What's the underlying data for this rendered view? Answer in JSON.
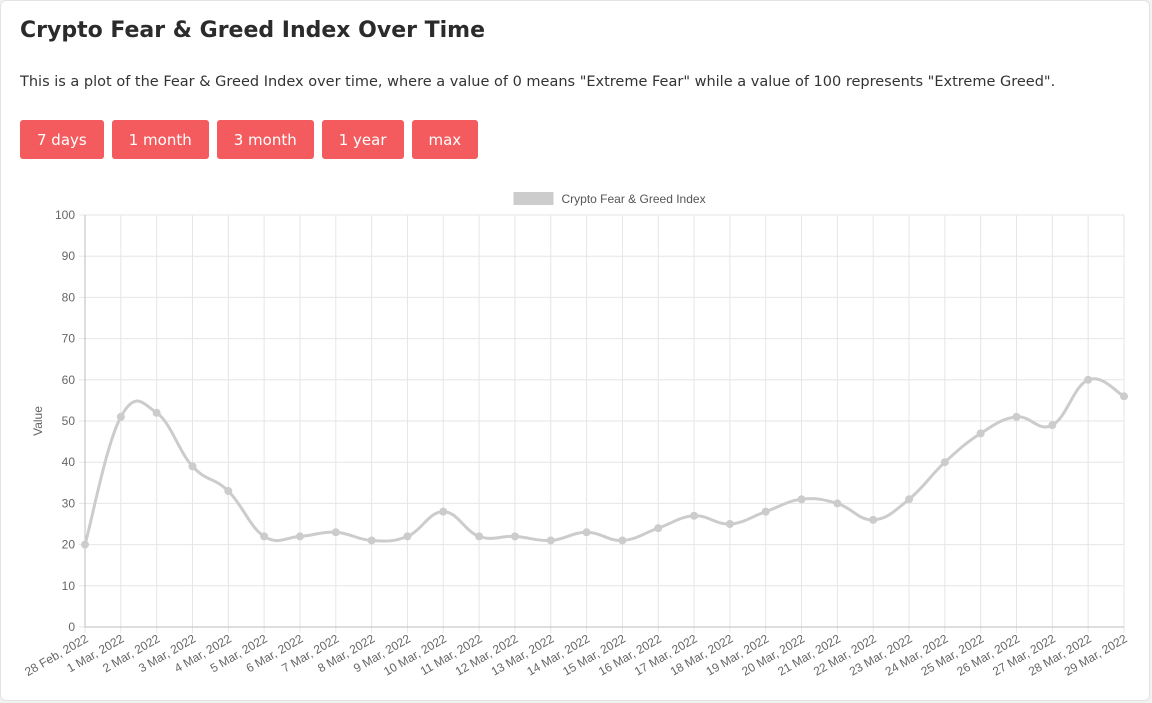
{
  "page": {
    "title": "Crypto Fear & Greed Index Over Time",
    "description": "This is a plot of the Fear & Greed Index over time, where a value of 0 means \"Extreme Fear\" while a value of 100 represents \"Extreme Greed\"."
  },
  "buttons": [
    {
      "label": "7 days"
    },
    {
      "label": "1 month"
    },
    {
      "label": "3 month"
    },
    {
      "label": "1 year"
    },
    {
      "label": "max"
    }
  ],
  "colors": {
    "button_bg": "#f45b5e",
    "series_line": "#cccccc",
    "grid": "#e6e6e6"
  },
  "chart_data": {
    "type": "line",
    "title": "",
    "xlabel": "",
    "ylabel": "Value",
    "ylim": [
      0,
      100
    ],
    "yticks": [
      0,
      10,
      20,
      30,
      40,
      50,
      60,
      70,
      80,
      90,
      100
    ],
    "grid": true,
    "legend_position": "top-center",
    "categories": [
      "28 Feb, 2022",
      "1 Mar, 2022",
      "2 Mar, 2022",
      "3 Mar, 2022",
      "4 Mar, 2022",
      "5 Mar, 2022",
      "6 Mar, 2022",
      "7 Mar, 2022",
      "8 Mar, 2022",
      "9 Mar, 2022",
      "10 Mar, 2022",
      "11 Mar, 2022",
      "12 Mar, 2022",
      "13 Mar, 2022",
      "14 Mar, 2022",
      "15 Mar, 2022",
      "16 Mar, 2022",
      "17 Mar, 2022",
      "18 Mar, 2022",
      "19 Mar, 2022",
      "20 Mar, 2022",
      "21 Mar, 2022",
      "22 Mar, 2022",
      "23 Mar, 2022",
      "24 Mar, 2022",
      "25 Mar, 2022",
      "26 Mar, 2022",
      "27 Mar, 2022",
      "28 Mar, 2022",
      "29 Mar, 2022"
    ],
    "series": [
      {
        "name": "Crypto Fear & Greed Index",
        "values": [
          20,
          51,
          52,
          39,
          33,
          22,
          22,
          23,
          21,
          22,
          28,
          22,
          22,
          21,
          23,
          21,
          24,
          27,
          25,
          28,
          31,
          30,
          26,
          31,
          40,
          47,
          51,
          49,
          60,
          56
        ]
      }
    ]
  }
}
